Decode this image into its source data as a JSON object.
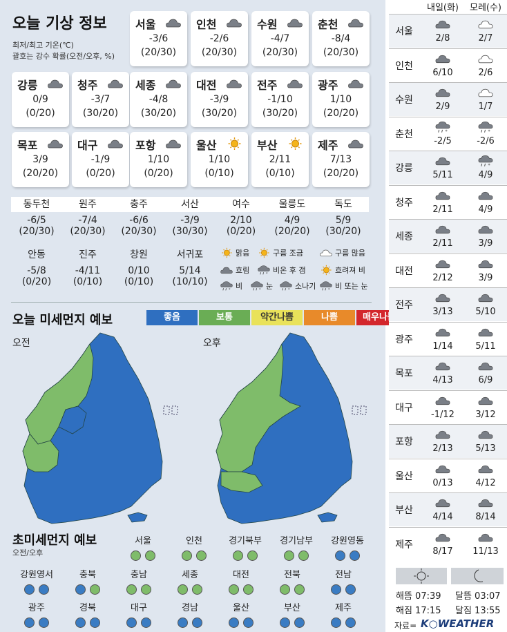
{
  "title": "오늘 기상 정보",
  "note1": "최저/최고 기온(℃)",
  "note2": "괄호는 강수 확률(오전/오후, %)",
  "cards": [
    {
      "name": "서울",
      "temp": "-3/6",
      "prob": "(20/30)",
      "icon": "cloud-icon"
    },
    {
      "name": "인천",
      "temp": "-2/6",
      "prob": "(20/30)",
      "icon": "cloud-icon"
    },
    {
      "name": "수원",
      "temp": "-4/7",
      "prob": "(20/30)",
      "icon": "cloud-icon"
    },
    {
      "name": "춘천",
      "temp": "-8/4",
      "prob": "(20/30)",
      "icon": "cloud-icon"
    },
    {
      "name": "강릉",
      "temp": "0/9",
      "prob": "(0/20)",
      "icon": "cloud-icon"
    },
    {
      "name": "청주",
      "temp": "-3/7",
      "prob": "(30/20)",
      "icon": "cloud-icon"
    },
    {
      "name": "세종",
      "temp": "-4/8",
      "prob": "(30/20)",
      "icon": "cloud-icon"
    },
    {
      "name": "대전",
      "temp": "-3/9",
      "prob": "(30/20)",
      "icon": "cloud-icon"
    },
    {
      "name": "전주",
      "temp": "-1/10",
      "prob": "(30/20)",
      "icon": "cloud-icon"
    },
    {
      "name": "광주",
      "temp": "1/10",
      "prob": "(20/20)",
      "icon": "cloud-icon"
    },
    {
      "name": "목포",
      "temp": "3/9",
      "prob": "(20/20)",
      "icon": "cloud-icon"
    },
    {
      "name": "대구",
      "temp": "-1/9",
      "prob": "(0/20)",
      "icon": "cloud-icon"
    },
    {
      "name": "포항",
      "temp": "1/10",
      "prob": "(0/20)",
      "icon": "cloud-icon"
    },
    {
      "name": "울산",
      "temp": "1/10",
      "prob": "(0/10)",
      "icon": "sun-icon"
    },
    {
      "name": "부산",
      "temp": "2/11",
      "prob": "(0/10)",
      "icon": "sun-icon"
    },
    {
      "name": "제주",
      "temp": "7/13",
      "prob": "(20/20)",
      "icon": "cloud-icon"
    }
  ],
  "cells": [
    {
      "name": "동두천",
      "temp": "-6/5",
      "prob": "(20/30)"
    },
    {
      "name": "원주",
      "temp": "-7/4",
      "prob": "(20/30)"
    },
    {
      "name": "충주",
      "temp": "-6/6",
      "prob": "(20/30)"
    },
    {
      "name": "서산",
      "temp": "-3/9",
      "prob": "(30/30)"
    },
    {
      "name": "여수",
      "temp": "2/10",
      "prob": "(0/20)"
    },
    {
      "name": "울릉도",
      "temp": "4/9",
      "prob": "(20/20)"
    },
    {
      "name": "독도",
      "temp": "5/9",
      "prob": "(30/20)"
    },
    {
      "name": "안동",
      "temp": "-5/8",
      "prob": "(0/20)"
    },
    {
      "name": "진주",
      "temp": "-4/11",
      "prob": "(0/10)"
    },
    {
      "name": "창원",
      "temp": "0/10",
      "prob": "(0/10)"
    },
    {
      "name": "서귀포",
      "temp": "5/14",
      "prob": "(10/10)"
    }
  ],
  "legend": [
    {
      "label": "맑음",
      "icon": "sun-icon"
    },
    {
      "label": "구름 조금",
      "icon": "sun-cloud-icon"
    },
    {
      "label": "구름 많음",
      "icon": "cloud-sun-icon"
    },
    {
      "label": "흐림",
      "icon": "cloud-icon"
    },
    {
      "label": "비온 후 갬",
      "icon": "rain-then-sun-icon"
    },
    {
      "label": "흐려져 비",
      "icon": "sun-then-rain-icon"
    },
    {
      "label": "비",
      "icon": "rain-icon"
    },
    {
      "label": "눈",
      "icon": "snow-icon"
    },
    {
      "label": "소나기",
      "icon": "shower-icon"
    },
    {
      "label": "비 또는 눈",
      "icon": "rain-snow-icon"
    }
  ],
  "dust_title": "오늘 미세먼지 예보",
  "dust_legend": [
    {
      "label": "좋음",
      "color": "#2f6fc0"
    },
    {
      "label": "보통",
      "color": "#6aad55"
    },
    {
      "label": "약간나쁨",
      "color": "#e9e25a"
    },
    {
      "label": "나쁨",
      "color": "#e88a2a"
    },
    {
      "label": "매우나쁨",
      "color": "#d3262c"
    }
  ],
  "am_label": "오전",
  "pm_label": "오후",
  "pm_title": "초미세먼지 예보",
  "pm_sub": "오전/오후",
  "pm_regions": [
    {
      "name": "서울",
      "am": "g",
      "pm": "g"
    },
    {
      "name": "인천",
      "am": "g",
      "pm": "g"
    },
    {
      "name": "경기북부",
      "am": "g",
      "pm": "g"
    },
    {
      "name": "경기남부",
      "am": "g",
      "pm": "g"
    },
    {
      "name": "강원영동",
      "am": "b",
      "pm": "b"
    },
    {
      "name": "강원영서",
      "am": "b",
      "pm": "b"
    },
    {
      "name": "충북",
      "am": "b",
      "pm": "g"
    },
    {
      "name": "충남",
      "am": "g",
      "pm": "g"
    },
    {
      "name": "세종",
      "am": "g",
      "pm": "g"
    },
    {
      "name": "대전",
      "am": "g",
      "pm": "g"
    },
    {
      "name": "전북",
      "am": "g",
      "pm": "g"
    },
    {
      "name": "전남",
      "am": "b",
      "pm": "b"
    },
    {
      "name": "광주",
      "am": "b",
      "pm": "b"
    },
    {
      "name": "경북",
      "am": "b",
      "pm": "b"
    },
    {
      "name": "대구",
      "am": "b",
      "pm": "b"
    },
    {
      "name": "경남",
      "am": "b",
      "pm": "b"
    },
    {
      "name": "울산",
      "am": "b",
      "pm": "b"
    },
    {
      "name": "부산",
      "am": "b",
      "pm": "b"
    },
    {
      "name": "제주",
      "am": "b",
      "pm": "b"
    }
  ],
  "forecast": {
    "head1": "내일(화)",
    "head2": "모레(수)",
    "rows": [
      {
        "city": "서울",
        "d1": "2/8",
        "d2": "2/7",
        "i1": "cloud-icon",
        "i2": "cloud-outline-icon"
      },
      {
        "city": "인천",
        "d1": "6/10",
        "d2": "2/6",
        "i1": "cloud-icon",
        "i2": "cloud-outline-icon"
      },
      {
        "city": "수원",
        "d1": "2/9",
        "d2": "1/7",
        "i1": "cloud-icon",
        "i2": "cloud-outline-icon"
      },
      {
        "city": "춘천",
        "d1": "-2/5",
        "d2": "-2/6",
        "i1": "rain-snow-icon",
        "i2": "rain-snow-icon"
      },
      {
        "city": "강릉",
        "d1": "5/11",
        "d2": "4/9",
        "i1": "cloud-icon",
        "i2": "rain-snow-icon"
      },
      {
        "city": "청주",
        "d1": "2/11",
        "d2": "4/9",
        "i1": "cloud-icon",
        "i2": "cloud-icon"
      },
      {
        "city": "세종",
        "d1": "2/11",
        "d2": "3/9",
        "i1": "cloud-icon",
        "i2": "cloud-icon"
      },
      {
        "city": "대전",
        "d1": "2/12",
        "d2": "3/9",
        "i1": "cloud-icon",
        "i2": "cloud-icon"
      },
      {
        "city": "전주",
        "d1": "3/13",
        "d2": "5/10",
        "i1": "cloud-icon",
        "i2": "cloud-icon"
      },
      {
        "city": "광주",
        "d1": "1/14",
        "d2": "5/11",
        "i1": "cloud-icon",
        "i2": "cloud-icon"
      },
      {
        "city": "목포",
        "d1": "4/13",
        "d2": "6/9",
        "i1": "cloud-icon",
        "i2": "cloud-icon"
      },
      {
        "city": "대구",
        "d1": "-1/12",
        "d2": "3/12",
        "i1": "cloud-icon",
        "i2": "cloud-icon"
      },
      {
        "city": "포항",
        "d1": "2/13",
        "d2": "5/13",
        "i1": "cloud-icon",
        "i2": "cloud-icon"
      },
      {
        "city": "울산",
        "d1": "0/13",
        "d2": "4/12",
        "i1": "cloud-icon",
        "i2": "cloud-icon"
      },
      {
        "city": "부산",
        "d1": "4/14",
        "d2": "8/14",
        "i1": "cloud-icon",
        "i2": "cloud-icon"
      },
      {
        "city": "제주",
        "d1": "8/17",
        "d2": "11/13",
        "i1": "cloud-icon",
        "i2": "cloud-icon"
      }
    ]
  },
  "sun": {
    "rise": "해뜸 07:39",
    "set": "해짐 17:15"
  },
  "moon": {
    "rise": "달뜸 03:07",
    "set": "달짐 13:55"
  },
  "source": "자료=",
  "brand": "K○WEATHER"
}
